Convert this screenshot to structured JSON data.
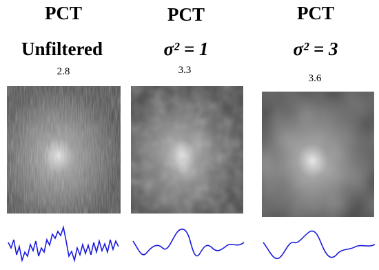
{
  "panels": [
    {
      "title": "PCT",
      "subtitle": "Unfiltered",
      "value": 2.8
    },
    {
      "title": "PCT",
      "subtitle": "σ² = 1",
      "value": 3.3
    },
    {
      "title": "PCT",
      "subtitle": "σ² = 3",
      "value": 3.6
    }
  ]
}
